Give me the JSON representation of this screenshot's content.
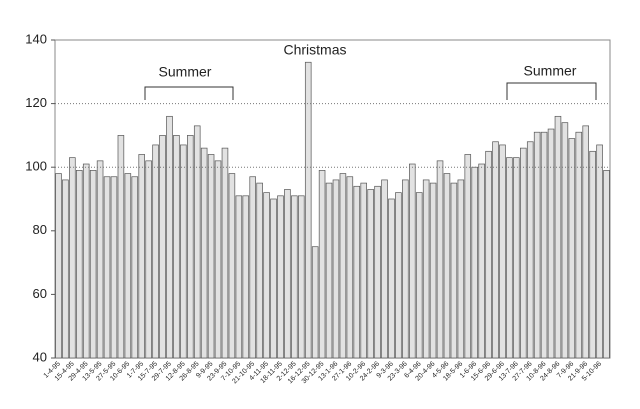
{
  "chart_data": {
    "type": "bar",
    "categories": [
      "1-4-95",
      null,
      "15-4-95",
      null,
      "29-4-95",
      null,
      "13-5-95",
      null,
      "27-5-95",
      null,
      "10-6-95",
      null,
      "1-7-95",
      null,
      "15-7-95",
      null,
      "29-7-95",
      null,
      "12-8-95",
      null,
      "26-8-95",
      null,
      "9-9-95",
      null,
      "23-9-95",
      null,
      "7-10-95",
      null,
      "21-10-95",
      null,
      "4-11-95",
      null,
      "18-11-95",
      null,
      "2-12-95",
      null,
      "16-12-95",
      null,
      "30-12-95",
      null,
      "13-1-96",
      null,
      "27-1-96",
      null,
      "10-2-96",
      null,
      "24-2-96",
      null,
      "9-3-96",
      null,
      "23-3-96",
      null,
      "6-4-96",
      null,
      "20-4-96",
      null,
      "4-5-96",
      null,
      "18-5-96",
      null,
      "1-6-96",
      null,
      "15-6-96",
      null,
      "29-6-96",
      null,
      "13-7-96",
      null,
      "27-7-96",
      null,
      "10-8-96",
      null,
      "24-8-96",
      null,
      "7-9-96",
      null,
      "21-9-96",
      null,
      "5-10-96",
      null
    ],
    "values": [
      98,
      96,
      103,
      99,
      101,
      99,
      102,
      97,
      97,
      110,
      98,
      97,
      104,
      102,
      107,
      110,
      116,
      110,
      107,
      110,
      113,
      106,
      104,
      102,
      106,
      98,
      91,
      91,
      97,
      95,
      92,
      90,
      91,
      93,
      91,
      91,
      133,
      75,
      99,
      95,
      96,
      98,
      97,
      94,
      95,
      93,
      94,
      96,
      90,
      92,
      96,
      101,
      92,
      96,
      95,
      102,
      98,
      95,
      96,
      104,
      100,
      101,
      105,
      108,
      107,
      103,
      103,
      106,
      108,
      111,
      111,
      112,
      116,
      114,
      109,
      111,
      113,
      105,
      107,
      99
    ],
    "color": "#e2e2e2",
    "ylim": [
      40,
      140
    ],
    "yticks": [
      40,
      60,
      80,
      100,
      120,
      140
    ],
    "reference_lines": [
      100,
      120
    ],
    "annotations": [
      "Christmas",
      "Summer",
      "Summer"
    ]
  }
}
